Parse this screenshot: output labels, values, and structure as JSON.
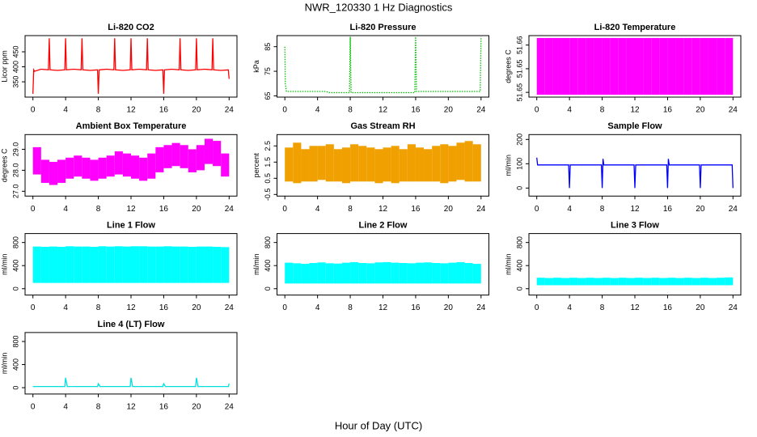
{
  "title": "NWR_120330  1 Hz Diagnostics",
  "x_label": "Hour of Day (UTC)",
  "chart_data": [
    {
      "type": "line",
      "title": "Li-820 CO2",
      "y_label": "Licor ppm",
      "xlim": [
        -0.96,
        24.96
      ],
      "xticks": [
        0,
        4,
        8,
        12,
        16,
        20,
        24
      ],
      "ylim": [
        299,
        504
      ],
      "yticks": [
        350,
        400,
        450
      ],
      "series": [
        {
          "color": "#ff0000",
          "x": [
            0,
            0.1,
            0.2,
            1,
            1.9,
            2,
            2.1,
            3,
            3.9,
            4,
            4.1,
            5,
            5.9,
            6,
            6.1,
            7,
            7.9,
            8,
            8.1,
            9,
            9.9,
            10,
            10.1,
            11,
            11.9,
            12,
            12.1,
            13,
            13.9,
            14,
            14.1,
            15,
            15.9,
            16,
            16.1,
            17,
            17.9,
            18,
            18.1,
            19,
            19.9,
            20,
            20.1,
            21,
            21.9,
            22,
            22.1,
            23,
            23.9,
            24
          ],
          "values": [
            310,
            390,
            385,
            392,
            390,
            495,
            390,
            388,
            390,
            495,
            390,
            392,
            390,
            495,
            390,
            388,
            390,
            310,
            390,
            392,
            390,
            495,
            390,
            388,
            390,
            495,
            390,
            392,
            390,
            495,
            390,
            388,
            390,
            310,
            390,
            392,
            390,
            495,
            390,
            388,
            390,
            495,
            390,
            392,
            390,
            495,
            390,
            388,
            390,
            360
          ]
        }
      ]
    },
    {
      "type": "line",
      "title": "Li-820 Pressure",
      "y_label": "kPa",
      "xlim": [
        -0.96,
        24.96
      ],
      "xticks": [
        0,
        4,
        8,
        12,
        16,
        20,
        24
      ],
      "ylim": [
        64.5,
        89.5
      ],
      "yticks": [
        65,
        75,
        85
      ],
      "series": [
        {
          "color": "#00c000",
          "line_style": "dotted",
          "x": [
            0,
            0.05,
            0.2,
            5,
            5.5,
            7.9,
            8,
            8.1,
            15.9,
            16,
            16.1,
            23.9,
            24
          ],
          "values": [
            85,
            70,
            66.8,
            66.8,
            66.3,
            66.3,
            89,
            66.3,
            66.3,
            89,
            66.8,
            66.8,
            89
          ]
        }
      ]
    },
    {
      "type": "band",
      "title": "Li-820 Temperature",
      "y_label": "degrees C",
      "xlim": [
        -0.96,
        24.96
      ],
      "xticks": [
        0,
        4,
        8,
        12,
        16,
        20,
        24
      ],
      "ylim": [
        51.644,
        51.657
      ],
      "yticks": [
        {
          "value": 51.645,
          "label": "51.65"
        },
        {
          "value": 51.65,
          "label": "51.65"
        },
        {
          "value": 51.655,
          "label": "51.66"
        }
      ],
      "bins": [
        0,
        1,
        2,
        3,
        4,
        5,
        6,
        7,
        8,
        9,
        10,
        11,
        12,
        13,
        14,
        15,
        16,
        17,
        18,
        19,
        20,
        21,
        22,
        23,
        24
      ],
      "series": [
        {
          "color": "#ff00ff",
          "low": [
            51.6445,
            51.6445,
            51.6445,
            51.6445,
            51.6445,
            51.6445,
            51.6445,
            51.6445,
            51.6445,
            51.6445,
            51.6445,
            51.6445,
            51.6445,
            51.6445,
            51.6445,
            51.6445,
            51.6445,
            51.6445,
            51.6445,
            51.6445,
            51.6445,
            51.6445,
            51.6445,
            51.6445
          ],
          "high": [
            51.6565,
            51.6565,
            51.6565,
            51.6565,
            51.6565,
            51.6565,
            51.6565,
            51.6565,
            51.6565,
            51.6565,
            51.6565,
            51.6565,
            51.6565,
            51.6565,
            51.6565,
            51.6565,
            51.6565,
            51.6565,
            51.6565,
            51.6565,
            51.6565,
            51.6565,
            51.6565,
            51.6565
          ]
        }
      ]
    },
    {
      "type": "band",
      "title": "Ambient Box Temperature",
      "y_label": "degrees C",
      "xlim": [
        -0.96,
        24.96
      ],
      "xticks": [
        0,
        4,
        8,
        12,
        16,
        20,
        24
      ],
      "ylim": [
        26.77,
        29.7
      ],
      "yticks": [
        {
          "value": 27,
          "label": "27.0"
        },
        {
          "value": 28,
          "label": "28.0"
        },
        {
          "value": 29,
          "label": "29.0"
        }
      ],
      "bins": [
        0,
        1,
        2,
        3,
        4,
        5,
        6,
        7,
        8,
        9,
        10,
        11,
        12,
        13,
        14,
        15,
        16,
        17,
        18,
        19,
        20,
        21,
        22,
        23,
        24
      ],
      "series": [
        {
          "color": "#ff00ff",
          "low": [
            27.8,
            27.4,
            27.3,
            27.4,
            27.6,
            27.7,
            27.6,
            27.5,
            27.6,
            27.7,
            27.8,
            27.7,
            27.6,
            27.5,
            27.6,
            27.9,
            28.1,
            28.2,
            28.1,
            27.9,
            28.0,
            28.3,
            28.2,
            27.7
          ],
          "high": [
            29.1,
            28.5,
            28.4,
            28.5,
            28.6,
            28.7,
            28.6,
            28.5,
            28.6,
            28.7,
            28.9,
            28.8,
            28.7,
            28.6,
            28.8,
            29.1,
            29.2,
            29.3,
            29.2,
            29.0,
            29.2,
            29.5,
            29.4,
            28.8
          ]
        }
      ]
    },
    {
      "type": "band",
      "title": "Gas Stream RH",
      "y_label": "percent",
      "xlim": [
        -0.96,
        24.96
      ],
      "xticks": [
        0,
        4,
        8,
        12,
        16,
        20,
        24
      ],
      "ylim": [
        -0.6,
        3.2
      ],
      "yticks": [
        -0.5,
        0.5,
        1.5,
        2.5
      ],
      "bins": [
        0,
        1,
        2,
        3,
        4,
        5,
        6,
        7,
        8,
        9,
        10,
        11,
        12,
        13,
        14,
        15,
        16,
        17,
        18,
        19,
        20,
        21,
        22,
        23,
        24
      ],
      "series": [
        {
          "color": "#f0a000",
          "low": [
            0.3,
            0.2,
            0.3,
            0.3,
            0.4,
            0.3,
            0.3,
            0.2,
            0.3,
            0.3,
            0.3,
            0.2,
            0.3,
            0.2,
            0.3,
            0.3,
            0.3,
            0.3,
            0.3,
            0.2,
            0.3,
            0.4,
            0.3,
            0.3
          ],
          "high": [
            2.4,
            2.7,
            2.3,
            2.5,
            2.5,
            2.6,
            2.3,
            2.4,
            2.6,
            2.5,
            2.4,
            2.3,
            2.4,
            2.5,
            2.3,
            2.6,
            2.4,
            2.3,
            2.5,
            2.6,
            2.5,
            2.7,
            2.8,
            2.6
          ]
        }
      ]
    },
    {
      "type": "line",
      "title": "Sample Flow",
      "y_label": "ml/min",
      "xlim": [
        -0.96,
        24.96
      ],
      "xticks": [
        0,
        4,
        8,
        12,
        16,
        20,
        24
      ],
      "ylim": [
        -33,
        220
      ],
      "yticks": [
        0,
        100,
        200
      ],
      "series": [
        {
          "color": "#0000ff",
          "x": [
            0,
            0.1,
            3.9,
            4,
            4.1,
            7.9,
            8,
            8.1,
            8.2,
            11.9,
            12,
            12.1,
            15.9,
            16,
            16.1,
            16.2,
            19.9,
            20,
            20.1,
            23.9,
            24
          ],
          "values": [
            125,
            95,
            95,
            0,
            95,
            95,
            0,
            120,
            95,
            95,
            0,
            95,
            95,
            0,
            120,
            95,
            95,
            0,
            95,
            95,
            0
          ]
        }
      ]
    },
    {
      "type": "band",
      "title": "Line 1 Flow",
      "y_label": "ml/min",
      "xlim": [
        -0.96,
        24.96
      ],
      "xticks": [
        0,
        4,
        8,
        12,
        16,
        20,
        24
      ],
      "ylim": [
        -110,
        955
      ],
      "yticks": [
        0,
        400,
        800
      ],
      "bins": [
        0,
        1,
        2,
        3,
        4,
        5,
        6,
        7,
        8,
        9,
        10,
        11,
        12,
        13,
        14,
        15,
        16,
        17,
        18,
        19,
        20,
        21,
        22,
        23,
        24
      ],
      "series": [
        {
          "color": "#00ffff",
          "low": [
            100,
            100,
            100,
            100,
            100,
            100,
            100,
            100,
            100,
            100,
            100,
            100,
            100,
            100,
            100,
            100,
            100,
            100,
            100,
            100,
            100,
            100,
            100,
            100
          ],
          "high": [
            730,
            725,
            730,
            725,
            735,
            730,
            730,
            725,
            735,
            730,
            735,
            730,
            735,
            735,
            730,
            730,
            735,
            730,
            730,
            725,
            730,
            730,
            725,
            720
          ]
        }
      ]
    },
    {
      "type": "band",
      "title": "Line 2 Flow",
      "y_label": "ml/min",
      "xlim": [
        -0.96,
        24.96
      ],
      "xticks": [
        0,
        4,
        8,
        12,
        16,
        20,
        24
      ],
      "ylim": [
        -110,
        955
      ],
      "yticks": [
        0,
        400,
        800
      ],
      "bins": [
        0,
        1,
        2,
        3,
        4,
        5,
        6,
        7,
        8,
        9,
        10,
        11,
        12,
        13,
        14,
        15,
        16,
        17,
        18,
        19,
        20,
        21,
        22,
        23,
        24
      ],
      "series": [
        {
          "color": "#00ffff",
          "low": [
            90,
            90,
            90,
            90,
            90,
            90,
            90,
            90,
            90,
            90,
            90,
            90,
            90,
            90,
            90,
            90,
            90,
            90,
            90,
            90,
            90,
            90,
            90,
            90
          ],
          "high": [
            450,
            440,
            430,
            445,
            455,
            440,
            435,
            450,
            460,
            445,
            440,
            455,
            460,
            450,
            445,
            440,
            450,
            455,
            445,
            440,
            450,
            460,
            445,
            430
          ]
        }
      ]
    },
    {
      "type": "band",
      "title": "Line 3 Flow",
      "y_label": "ml/min",
      "xlim": [
        -0.96,
        24.96
      ],
      "xticks": [
        0,
        4,
        8,
        12,
        16,
        20,
        24
      ],
      "ylim": [
        -110,
        955
      ],
      "yticks": [
        0,
        400,
        800
      ],
      "bins": [
        0,
        1,
        2,
        3,
        4,
        5,
        6,
        7,
        8,
        9,
        10,
        11,
        12,
        13,
        14,
        15,
        16,
        17,
        18,
        19,
        20,
        21,
        22,
        23,
        24
      ],
      "series": [
        {
          "color": "#00ffff",
          "low": [
            60,
            60,
            60,
            60,
            60,
            60,
            60,
            60,
            60,
            60,
            60,
            60,
            60,
            60,
            60,
            60,
            60,
            60,
            60,
            60,
            60,
            60,
            60,
            60
          ],
          "high": [
            190,
            185,
            190,
            185,
            190,
            185,
            190,
            185,
            190,
            185,
            190,
            185,
            190,
            185,
            190,
            185,
            190,
            185,
            190,
            185,
            190,
            185,
            190,
            195
          ]
        }
      ]
    },
    {
      "type": "line",
      "title": "Line 4 (LT) Flow",
      "y_label": "ml/min",
      "xlim": [
        -0.96,
        24.96
      ],
      "xticks": [
        0,
        4,
        8,
        12,
        16,
        20,
        24
      ],
      "ylim": [
        -110,
        955
      ],
      "yticks": [
        0,
        400,
        800
      ],
      "series": [
        {
          "color": "#00e0e0",
          "x": [
            0,
            3.9,
            4,
            4.2,
            7.9,
            8,
            8.2,
            11.9,
            12,
            12.2,
            15.9,
            16,
            16.2,
            19.9,
            20,
            20.2,
            23.9,
            24
          ],
          "values": [
            20,
            20,
            170,
            20,
            20,
            70,
            20,
            20,
            170,
            20,
            20,
            70,
            20,
            20,
            170,
            20,
            20,
            70
          ]
        }
      ]
    }
  ]
}
